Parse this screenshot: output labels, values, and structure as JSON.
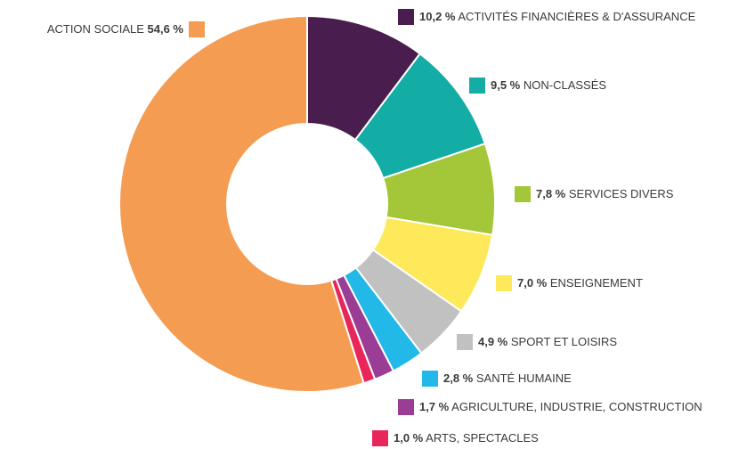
{
  "chart_data": {
    "type": "donut",
    "categories": [
      "ACTIVITÉS FINANCIÈRES & D'ASSURANCE",
      "NON-CLASSÉS",
      "SERVICES DIVERS",
      "ENSEIGNEMENT",
      "SPORT ET LOISIRS",
      "SANTÉ HUMAINE",
      "AGRICULTURE, INDUSTRIE, CONSTRUCTION",
      "ARTS, SPECTACLES",
      "ACTION SOCIALE"
    ],
    "values": [
      10.2,
      9.5,
      7.8,
      7.0,
      4.9,
      2.8,
      1.7,
      1.0,
      54.6
    ],
    "value_labels": [
      "10,2 %",
      "9,5 %",
      "7,8 %",
      "7,0 %",
      "4,9 %",
      "2,8 %",
      "1,7 %",
      "1,0 %",
      "54,6 %"
    ],
    "colors": [
      "#4a1d4f",
      "#14ada5",
      "#a4c639",
      "#fde95a",
      "#c1c1c1",
      "#22b8e8",
      "#9b3c95",
      "#e8265a",
      "#f59c53"
    ]
  }
}
